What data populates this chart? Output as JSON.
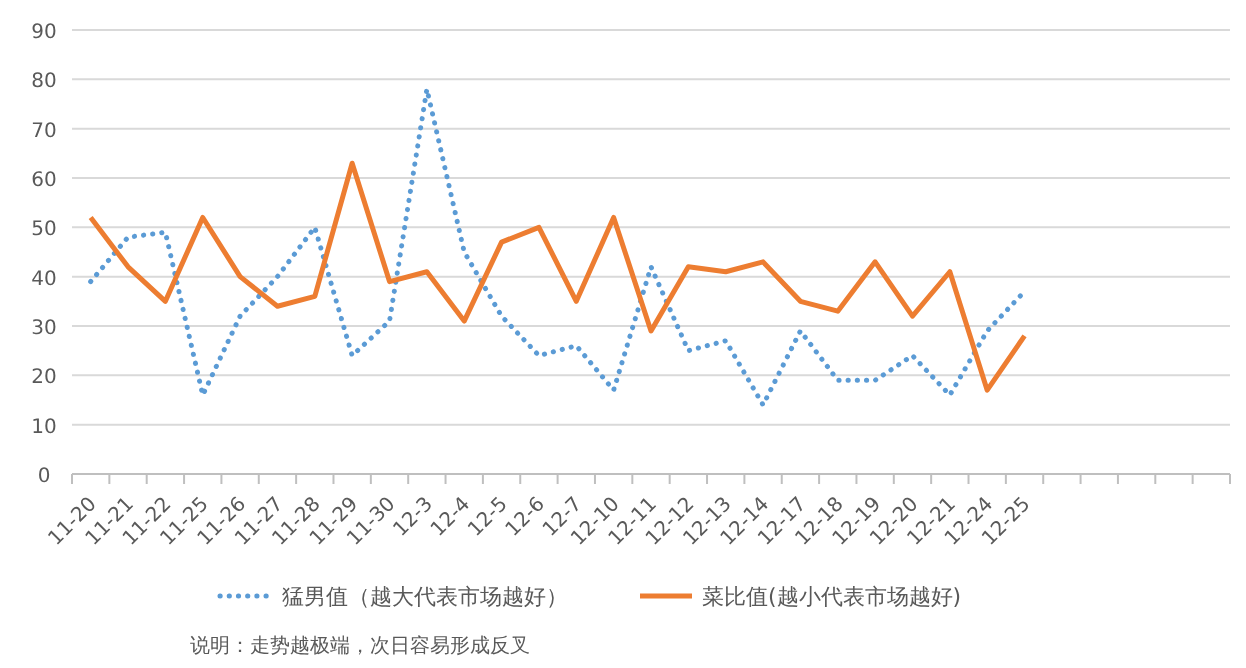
{
  "chart_data": {
    "type": "line",
    "categories": [
      "11-20",
      "11-21",
      "11-22",
      "11-25",
      "11-26",
      "11-27",
      "11-28",
      "11-29",
      "11-30",
      "12-3",
      "12-4",
      "12-5",
      "12-6",
      "12-7",
      "12-10",
      "12-11",
      "12-12",
      "12-13",
      "12-14",
      "12-17",
      "12-18",
      "12-19",
      "12-20",
      "12-21",
      "12-24",
      "12-25",
      null,
      null,
      null,
      null,
      null
    ],
    "series": [
      {
        "name": "猛男值（越大代表市场越好）",
        "color": "#5b9bd5",
        "line_style": "dotted",
        "values": [
          39,
          48,
          49,
          16,
          32,
          40,
          50,
          24,
          31,
          78,
          45,
          32,
          24,
          26,
          17,
          42,
          25,
          27,
          14,
          29,
          19,
          19,
          24,
          16,
          29,
          37,
          null,
          null,
          null,
          null,
          null
        ]
      },
      {
        "name": "菜比值(越小代表市场越好)",
        "color": "#ed7d31",
        "line_style": "solid",
        "values": [
          52,
          42,
          35,
          52,
          40,
          34,
          36,
          63,
          39,
          41,
          31,
          47,
          50,
          35,
          52,
          29,
          42,
          41,
          43,
          35,
          33,
          43,
          32,
          41,
          17,
          28,
          null,
          null,
          null,
          null,
          null
        ]
      }
    ],
    "ylim": [
      0,
      90
    ],
    "yticks": [
      0,
      10,
      20,
      30,
      40,
      50,
      60,
      70,
      80,
      90
    ],
    "grid": "y",
    "legend": "bottom",
    "marker": "none",
    "annotations": [
      "说明：走势越极端，次日容易形成反叉"
    ]
  }
}
